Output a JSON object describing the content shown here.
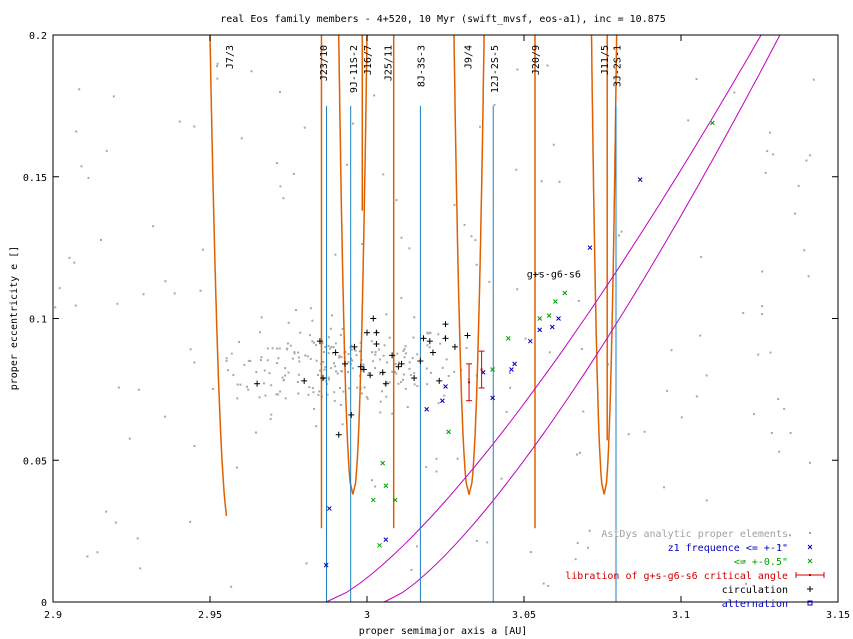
{
  "chart_data": {
    "type": "scatter",
    "title": "real Eos family members - 4+520, 10 Myr (swift_mvsf, eos-a1), inc = 10.875",
    "xlabel": "proper semimajor axis a [AU]",
    "ylabel": "proper eccentricity e []",
    "xlim": [
      2.9,
      3.15
    ],
    "ylim": [
      0,
      0.2
    ],
    "xticks": [
      {
        "v": 2.9,
        "label": "2.9"
      },
      {
        "v": 2.95,
        "label": "2.95"
      },
      {
        "v": 3.0,
        "label": "3"
      },
      {
        "v": 3.05,
        "label": "3.05"
      },
      {
        "v": 3.1,
        "label": "3.1"
      },
      {
        "v": 3.15,
        "label": "3.15"
      }
    ],
    "yticks": [
      {
        "v": 0,
        "label": "0"
      },
      {
        "v": 0.05,
        "label": "0.05"
      },
      {
        "v": 0.1,
        "label": "0.1"
      },
      {
        "v": 0.15,
        "label": "0.15"
      },
      {
        "v": 0.2,
        "label": "0.2"
      }
    ],
    "resonance_labels": [
      {
        "a": 2.956,
        "label": "J7/3"
      },
      {
        "a": 2.986,
        "label": "J23/10"
      },
      {
        "a": 2.9955,
        "label": "9J-11S-2"
      },
      {
        "a": 3.0,
        "label": "J16/7"
      },
      {
        "a": 3.0065,
        "label": "J25/11"
      },
      {
        "a": 3.017,
        "label": "8J-3S-3"
      },
      {
        "a": 3.032,
        "label": "J9/4"
      },
      {
        "a": 3.0405,
        "label": "12J-2S-5"
      },
      {
        "a": 3.0535,
        "label": "J20/9"
      },
      {
        "a": 3.0755,
        "label": "J11/5"
      },
      {
        "a": 3.0795,
        "label": "3J-2S-1"
      }
    ],
    "secular_label": "g+s-g6-s6",
    "mmr_lines": [
      {
        "a": 2.9871,
        "emax": 0.175
      },
      {
        "a": 2.9948,
        "emax": 0.175
      },
      {
        "a": 3.017,
        "emax": 0.175
      },
      {
        "a": 3.0402,
        "emax": 0.175
      },
      {
        "a": 3.0793,
        "emax": 0.175
      }
    ],
    "series": [
      {
        "name": "AstDys analytic proper elements",
        "marker": "dot",
        "color": "#a0a0a0",
        "points": []
      },
      {
        "name": "z1 frequence <= +-1\"",
        "marker": "x",
        "color": "#0000c0",
        "points": [
          [
            2.988,
            0.033
          ],
          [
            2.987,
            0.013
          ],
          [
            3.006,
            0.022
          ],
          [
            3.019,
            0.068
          ],
          [
            3.024,
            0.071
          ],
          [
            3.025,
            0.076
          ],
          [
            3.037,
            0.081
          ],
          [
            3.04,
            0.072
          ],
          [
            3.046,
            0.082
          ],
          [
            3.047,
            0.084
          ],
          [
            3.052,
            0.092
          ],
          [
            3.055,
            0.096
          ],
          [
            3.059,
            0.097
          ],
          [
            3.061,
            0.1
          ],
          [
            3.071,
            0.125
          ],
          [
            3.087,
            0.149
          ]
        ]
      },
      {
        "name": "<= +-0.5\"",
        "marker": "x",
        "color": "#00a000",
        "points": [
          [
            3.002,
            0.036
          ],
          [
            3.004,
            0.02
          ],
          [
            3.005,
            0.049
          ],
          [
            3.006,
            0.041
          ],
          [
            3.009,
            0.036
          ],
          [
            3.026,
            0.06
          ],
          [
            3.04,
            0.082
          ],
          [
            3.045,
            0.093
          ],
          [
            3.055,
            0.1
          ],
          [
            3.058,
            0.101
          ],
          [
            3.06,
            0.106
          ],
          [
            3.063,
            0.109
          ],
          [
            3.11,
            0.169
          ]
        ]
      },
      {
        "name": "libration of g+s-g6-s6 critical angle",
        "marker": "errorbar",
        "color": "#d00000",
        "points": [
          [
            3.0325,
            0.0775,
            0.0065
          ],
          [
            3.0365,
            0.082,
            0.0065
          ]
        ]
      },
      {
        "name": "circulation",
        "marker": "plus",
        "color": "#000000",
        "points": [
          [
            2.965,
            0.077
          ],
          [
            2.98,
            0.078
          ],
          [
            2.985,
            0.092
          ],
          [
            2.986,
            0.079
          ],
          [
            2.99,
            0.088
          ],
          [
            2.991,
            0.059
          ],
          [
            2.993,
            0.084
          ],
          [
            2.995,
            0.066
          ],
          [
            2.996,
            0.09
          ],
          [
            2.998,
            0.083
          ],
          [
            2.999,
            0.082
          ],
          [
            3.0,
            0.095
          ],
          [
            3.001,
            0.08
          ],
          [
            3.002,
            0.1
          ],
          [
            3.003,
            0.091
          ],
          [
            3.003,
            0.095
          ],
          [
            3.005,
            0.081
          ],
          [
            3.006,
            0.077
          ],
          [
            3.008,
            0.087
          ],
          [
            3.01,
            0.083
          ],
          [
            3.011,
            0.084
          ],
          [
            3.015,
            0.079
          ],
          [
            3.017,
            0.085
          ],
          [
            3.018,
            0.093
          ],
          [
            3.02,
            0.092
          ],
          [
            3.021,
            0.088
          ],
          [
            3.023,
            0.078
          ],
          [
            3.025,
            0.093
          ],
          [
            3.025,
            0.098
          ],
          [
            3.028,
            0.09
          ],
          [
            3.032,
            0.094
          ]
        ]
      },
      {
        "name": "alternation",
        "marker": "square",
        "color": "#0000c0",
        "points": []
      }
    ]
  }
}
